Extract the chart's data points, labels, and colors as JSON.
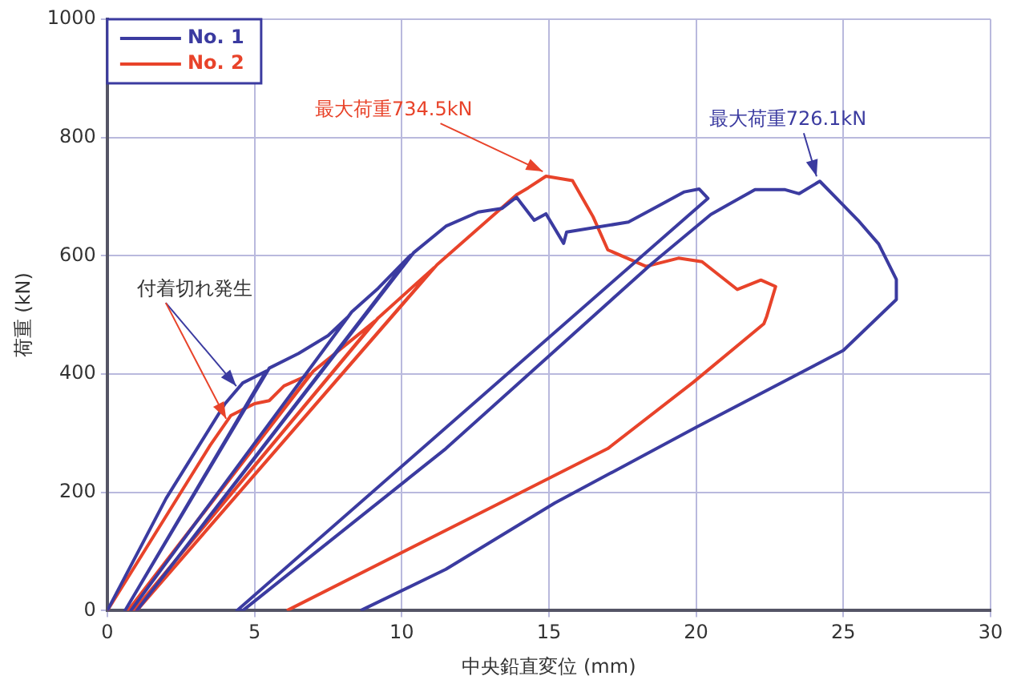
{
  "chart_data": {
    "type": "line",
    "xlabel": "中央鉛直変位 (mm)",
    "ylabel": "荷重 (kN)",
    "xlim": [
      0,
      30
    ],
    "xticks": [
      0,
      5,
      10,
      15,
      20,
      25,
      30
    ],
    "ylim": [
      0,
      1000
    ],
    "yticks": [
      0,
      200,
      400,
      600,
      800,
      1000
    ],
    "grid": true,
    "legend": "top left",
    "marker": "none",
    "line_style": "solid",
    "series": [
      {
        "name": "No. 1",
        "color": "#3b3ba0",
        "x": [
          0,
          2,
          4,
          4.6,
          5.0,
          5.4,
          0.6,
          5.5,
          6.5,
          7.5,
          8.2,
          0.8,
          8.3,
          9.2,
          10.3,
          1.0,
          10.4,
          11.5,
          12.6,
          13.4,
          13.9,
          14.5,
          14.9,
          15.5,
          15.6,
          17.7,
          19.6,
          20.1,
          20.4,
          4.4,
          4.6,
          11.5,
          18.5,
          20.5,
          22,
          23,
          23.5,
          24.2,
          25.5,
          26.2,
          26.8,
          26.8,
          25,
          20,
          15.2,
          11.5,
          8.6
        ],
        "values": [
          0,
          190,
          350,
          385,
          395,
          405,
          0,
          410,
          435,
          465,
          498,
          0,
          505,
          545,
          601,
          0,
          605,
          650,
          674,
          680,
          699,
          660,
          671,
          621,
          640,
          657,
          708,
          713,
          697,
          0,
          0,
          274,
          587,
          670,
          712,
          712,
          705,
          726.1,
          660,
          620,
          560,
          526,
          440,
          310,
          182,
          70,
          0
        ]
      },
      {
        "name": "No. 2",
        "color": "#e8432a",
        "x": [
          0,
          2,
          3.5,
          4.2,
          5,
          5.5,
          6.0,
          6.9,
          0.7,
          7.0,
          9.1,
          0.9,
          9.2,
          11.1,
          1.0,
          11.2,
          13.9,
          14.3,
          14.9,
          15.8,
          16.5,
          17.0,
          18.3,
          19.4,
          20.2,
          21.4,
          22.2,
          22.7,
          22.4,
          22.3,
          19.9,
          17.0,
          13.1,
          6.1
        ],
        "values": [
          0,
          160,
          280,
          330,
          350,
          355,
          380,
          400,
          0,
          405,
          490,
          0,
          495,
          580,
          0,
          585,
          703,
          715,
          734.5,
          727,
          666,
          610,
          582,
          596,
          590,
          543,
          559,
          548,
          498,
          485,
          386,
          274,
          176,
          0
        ]
      }
    ],
    "annotations": [
      {
        "text": "付着切れ発生",
        "x": 4.6,
        "y": 385
      },
      {
        "text": "最大荷重734.5kN",
        "x": 14.9,
        "y": 734.5
      },
      {
        "text": "最大荷重726.1kN",
        "x": 24.2,
        "y": 726.1
      }
    ]
  }
}
